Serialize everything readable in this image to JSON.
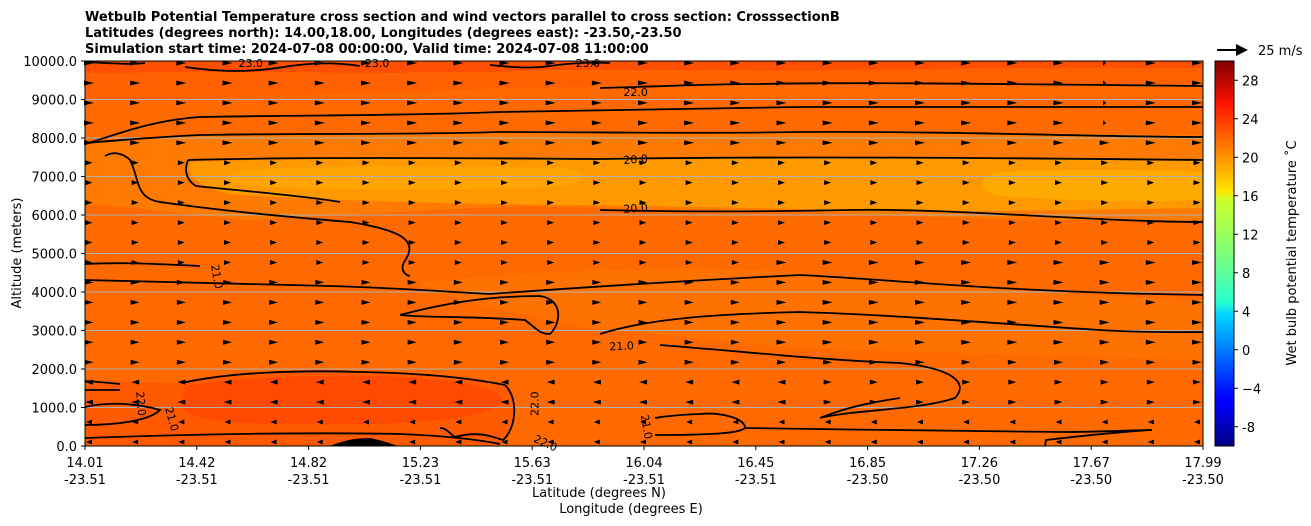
{
  "chart_data": {
    "type": "contourf",
    "title_lines": [
      "Wetbulb Potential Temperature cross section and wind vectors parallel to cross section: CrosssectionB",
      "Latitudes (degrees north): 14.00,18.00, Longitudes (degrees east): -23.50,-23.50",
      "Simulation start time: 2024-07-08 00:00:00, Valid time: 2024-07-08 11:00:00"
    ],
    "xlabel_lines": [
      "Latitude (degrees N)",
      "Longitude (degrees E)"
    ],
    "ylabel": "Altitude (meters)",
    "xlim": [
      14.01,
      17.99
    ],
    "ylim": [
      0,
      10000
    ],
    "x_ticks": [
      {
        "lat": "14.01",
        "lon": "-23.51"
      },
      {
        "lat": "14.42",
        "lon": "-23.51"
      },
      {
        "lat": "14.82",
        "lon": "-23.51"
      },
      {
        "lat": "15.23",
        "lon": "-23.51"
      },
      {
        "lat": "15.63",
        "lon": "-23.51"
      },
      {
        "lat": "16.04",
        "lon": "-23.51"
      },
      {
        "lat": "16.45",
        "lon": "-23.51"
      },
      {
        "lat": "16.85",
        "lon": "-23.50"
      },
      {
        "lat": "17.26",
        "lon": "-23.50"
      },
      {
        "lat": "17.67",
        "lon": "-23.50"
      },
      {
        "lat": "17.99",
        "lon": "-23.50"
      }
    ],
    "y_ticks": [
      "0.0",
      "1000.0",
      "2000.0",
      "3000.0",
      "4000.0",
      "5000.0",
      "6000.0",
      "7000.0",
      "8000.0",
      "9000.0",
      "10000.0"
    ],
    "y_tick_values": [
      0,
      1000,
      2000,
      3000,
      4000,
      5000,
      6000,
      7000,
      8000,
      9000,
      10000
    ],
    "grid": "horizontal",
    "colorbar": {
      "label": "Wet bulb potential temperature $^\\circ$C",
      "label_display": "Wet bulb potential temperature ˚C",
      "vmin": -10,
      "vmax": 30,
      "ticks": [
        "-8",
        "−4",
        "0",
        "4",
        "8",
        "12",
        "16",
        "20",
        "24",
        "28"
      ],
      "tick_values": [
        -8,
        -4,
        0,
        4,
        8,
        12,
        16,
        20,
        24,
        28
      ],
      "cmap": "jet"
    },
    "quiver_key": {
      "label": "25 m/s",
      "speed": 25,
      "placement": "top-right"
    },
    "contour_labels": [
      {
        "text": "23.0",
        "x": 14.6,
        "y": 9950,
        "rot": 0
      },
      {
        "text": "23.0",
        "x": 15.05,
        "y": 9950,
        "rot": 0
      },
      {
        "text": "23.0",
        "x": 15.8,
        "y": 9950,
        "rot": 0
      },
      {
        "text": "22.0",
        "x": 15.97,
        "y": 9200,
        "rot": 0
      },
      {
        "text": "20.0",
        "x": 15.97,
        "y": 7450,
        "rot": -4
      },
      {
        "text": "20.0",
        "x": 15.97,
        "y": 6180,
        "rot": -4
      },
      {
        "text": "21.0",
        "x": 14.48,
        "y": 4400,
        "rot": 80
      },
      {
        "text": "21.0",
        "x": 15.92,
        "y": 2600,
        "rot": -3
      },
      {
        "text": "22.0",
        "x": 14.21,
        "y": 1100,
        "rot": 85
      },
      {
        "text": "21.0",
        "x": 14.32,
        "y": 700,
        "rot": 75
      },
      {
        "text": "22.0",
        "x": 15.61,
        "y": 1100,
        "rot": -90
      },
      {
        "text": "22.0",
        "x": 15.65,
        "y": 80,
        "rot": 25
      },
      {
        "text": "21.0",
        "x": 16.01,
        "y": 500,
        "rot": 80
      }
    ]
  }
}
